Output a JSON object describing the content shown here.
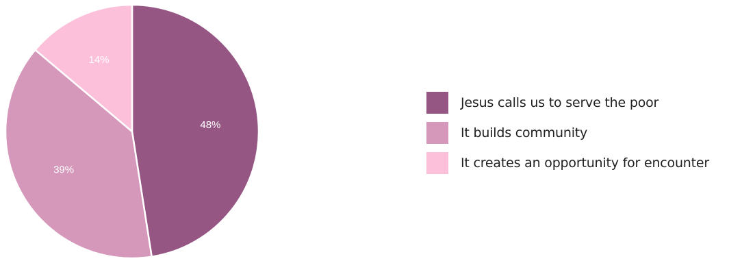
{
  "chart_data": {
    "type": "pie",
    "categories": [
      "Jesus calls us to serve the poor",
      "It builds community",
      "It creates an opportunity for encounter"
    ],
    "values": [
      48,
      39,
      14
    ],
    "value_labels": [
      "48%",
      "39%",
      "14%"
    ],
    "colors": [
      "#955683",
      "#d597ba",
      "#fcc0da"
    ],
    "legend_position": "right",
    "start_angle": "12 o'clock",
    "direction": "clockwise"
  }
}
